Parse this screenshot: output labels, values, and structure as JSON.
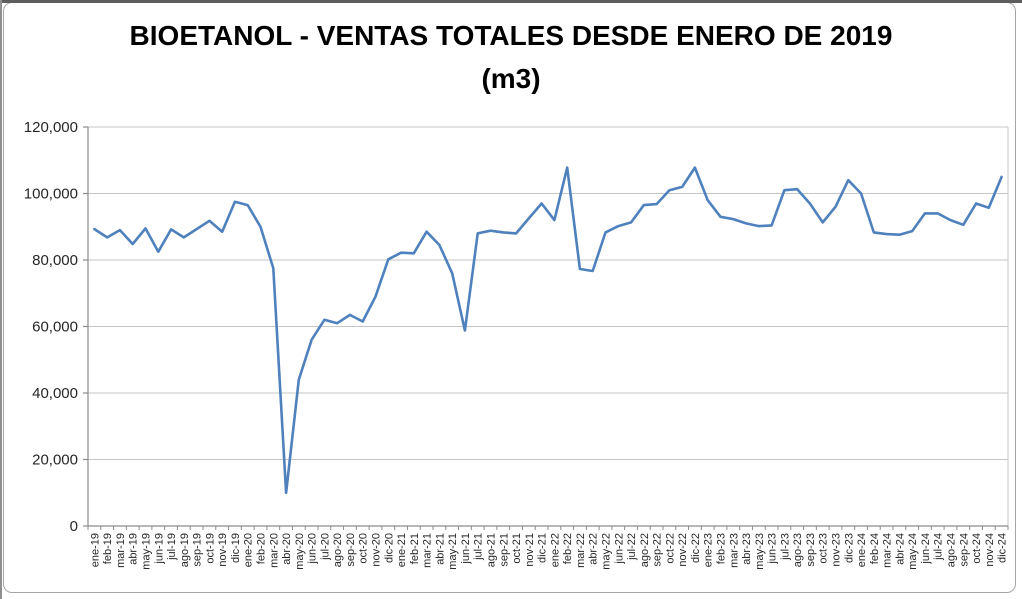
{
  "title": {
    "line1": "BIOETANOL - VENTAS TOTALES DESDE ENERO DE 2019",
    "line2": "(m3)"
  },
  "chart_data": {
    "type": "line",
    "title": "BIOETANOL - VENTAS TOTALES DESDE ENERO DE 2019 (m3)",
    "xlabel": "",
    "ylabel": "",
    "ylim": [
      0,
      120000
    ],
    "ytick_interval": 20000,
    "ytick_labels": [
      "0",
      "20,000",
      "40,000",
      "60,000",
      "80,000",
      "100,000",
      "120,000"
    ],
    "grid": "horizontal",
    "legend": "none",
    "line_color": "#4F81BD",
    "gridline_color": "#c6c6c6",
    "axis_color": "#8c8c8c",
    "tick_label_color": "#262626",
    "x": [
      "ene-19",
      "feb-19",
      "mar-19",
      "abr-19",
      "may-19",
      "jun-19",
      "jul-19",
      "ago-19",
      "sep-19",
      "oct-19",
      "nov-19",
      "dic-19",
      "ene-20",
      "feb-20",
      "mar-20",
      "abr-20",
      "may-20",
      "jun-20",
      "jul-20",
      "ago-20",
      "sep-20",
      "oct-20",
      "nov-20",
      "dic-20",
      "ene-21",
      "feb-21",
      "mar-21",
      "abr-21",
      "may-21",
      "jun-21",
      "jul-21",
      "ago-21",
      "sep-21",
      "oct-21",
      "nov-21",
      "dic-21",
      "ene-22",
      "feb-22",
      "mar-22",
      "abr-22",
      "may-22",
      "jun-22",
      "jul-22",
      "ago-22",
      "sep-22",
      "oct-22",
      "nov-22",
      "dic-22",
      "ene-23",
      "feb-23",
      "mar-23",
      "abr-23",
      "may-23",
      "jun-23",
      "jul-23",
      "ago-23",
      "sep-23",
      "oct-23",
      "nov-23",
      "dic-23",
      "ene-24",
      "feb-24",
      "mar-24",
      "abr-24",
      "may-24",
      "jun-24",
      "jul-24",
      "ago-24",
      "sep-24",
      "oct-24",
      "nov-24",
      "dic-24"
    ],
    "series": [
      {
        "name": "Ventas totales (m3)",
        "values": [
          89300,
          86800,
          89000,
          84800,
          89500,
          82500,
          89200,
          86800,
          89300,
          91800,
          88500,
          97500,
          96500,
          90000,
          77500,
          10000,
          44000,
          56000,
          62000,
          61000,
          63500,
          61500,
          69000,
          80200,
          82200,
          82000,
          88500,
          84500,
          76000,
          58800,
          88000,
          88800,
          88300,
          88000,
          92500,
          97000,
          92000,
          107800,
          77300,
          76700,
          88300,
          90200,
          91300,
          96500,
          96800,
          101000,
          102000,
          107800,
          98000,
          93000,
          92300,
          91000,
          90200,
          90400,
          101000,
          101300,
          97000,
          91300,
          96000,
          104000,
          100000,
          88300,
          87800,
          87600,
          88700,
          94000,
          94000,
          92000,
          90600,
          97000,
          95700,
          105000
        ]
      }
    ]
  }
}
